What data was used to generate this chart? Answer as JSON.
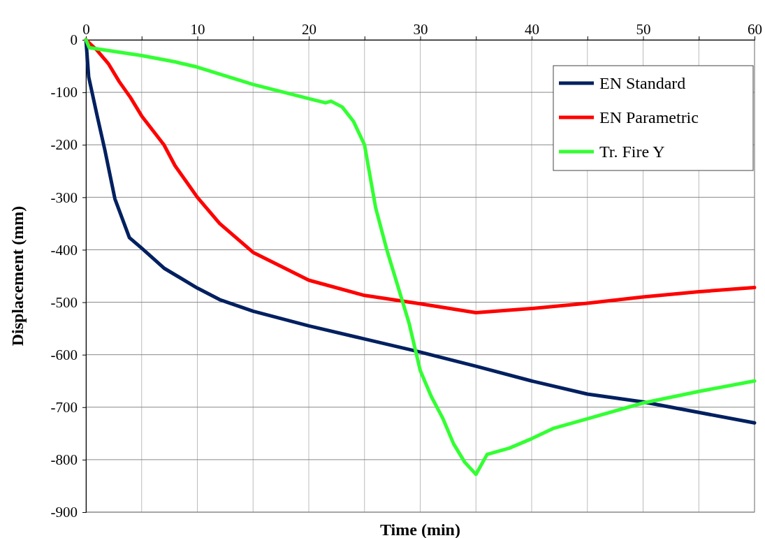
{
  "chart_data": {
    "type": "line",
    "xlabel": "Time (min)",
    "ylabel": "Displacement (mm)",
    "xlim": [
      0,
      60
    ],
    "xticks": [
      0,
      {
        "value": 5,
        "label": null
      },
      10,
      {
        "value": 15,
        "label": null
      },
      20,
      {
        "value": 25,
        "label": null
      },
      30,
      {
        "value": 35,
        "label": null
      },
      40,
      {
        "value": 45,
        "label": null
      },
      50,
      {
        "value": 55,
        "label": null
      },
      60
    ],
    "ylim": [
      -900,
      0
    ],
    "yticks": [
      -900,
      -800,
      -700,
      -600,
      -500,
      -400,
      -300,
      -200,
      -100,
      0
    ],
    "grid": true,
    "legend": "top right",
    "marker": "none",
    "line_style": "solid",
    "series": [
      {
        "name": "EN Standard",
        "color": "#002060",
        "x": [
          0,
          0.25,
          1,
          1.7,
          2.6,
          3.9,
          5,
          7,
          10,
          12,
          15,
          20,
          25,
          30,
          35,
          40,
          45,
          50,
          55,
          60
        ],
        "values": [
          0,
          -71,
          -144,
          -210,
          -303,
          -377,
          -397,
          -435,
          -473,
          -495,
          -517,
          -545,
          -570,
          -595,
          -622,
          -650,
          -675,
          -690,
          -710,
          -730
        ]
      },
      {
        "name": "EN Parametric",
        "color": "#ff0000",
        "x": [
          0,
          1,
          2,
          3,
          4,
          5,
          7,
          8,
          9,
          10,
          12,
          15,
          20,
          25,
          30,
          35,
          40,
          45,
          50,
          55,
          60
        ],
        "values": [
          0,
          -20,
          -45,
          -80,
          -110,
          -145,
          -200,
          -240,
          -270,
          -300,
          -350,
          -405,
          -458,
          -487,
          -503,
          -520,
          -512,
          -502,
          -490,
          -480,
          -472
        ]
      },
      {
        "name": "Tr. Fire Y",
        "color": "#33ff33",
        "x": [
          0,
          0.3,
          5,
          8,
          10,
          15,
          20,
          21.5,
          22,
          23,
          24,
          25,
          26,
          27,
          28,
          29,
          30,
          31,
          32,
          33,
          34,
          35,
          36,
          38,
          40,
          42,
          45,
          50,
          55,
          60
        ],
        "values": [
          0,
          -15,
          -30,
          -42,
          -52,
          -85,
          -112,
          -120,
          -117,
          -128,
          -155,
          -200,
          -320,
          -400,
          -470,
          -540,
          -630,
          -680,
          -720,
          -770,
          -805,
          -828,
          -790,
          -778,
          -760,
          -740,
          -722,
          -692,
          -670,
          -650
        ]
      }
    ]
  }
}
